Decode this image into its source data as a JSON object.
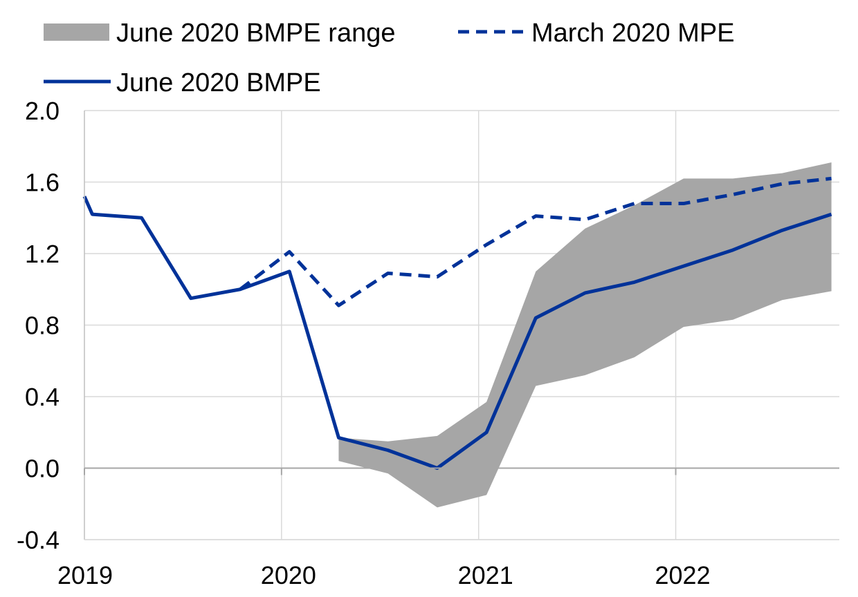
{
  "chart_data": {
    "type": "line",
    "title": "",
    "xlabel": "",
    "ylabel": "",
    "x_axis": {
      "tick_labels": [
        "2019",
        "2020",
        "2021",
        "2022"
      ],
      "range": [
        2019.0,
        2022.83
      ]
    },
    "y_axis": {
      "tick_labels": [
        "2.0",
        "1.6",
        "1.2",
        "0.8",
        "0.4",
        "0.0",
        "-0.4"
      ],
      "ylim": [
        -0.4,
        2.0
      ]
    },
    "grid": true,
    "legend": {
      "placement": "top",
      "entries": [
        {
          "label": "June 2020 BMPE range",
          "style": "band",
          "color": "#a6a6a6"
        },
        {
          "label": "March 2020 MPE",
          "style": "dashed",
          "color": "#003299"
        },
        {
          "label": "June 2020 BMPE",
          "style": "solid",
          "color": "#003299"
        }
      ]
    },
    "series": [
      {
        "name": "June 2020 BMPE",
        "style": "solid",
        "color": "#003299",
        "x": [
          2019.0,
          2019.04,
          2019.29,
          2019.54,
          2019.79,
          2020.04,
          2020.29,
          2020.54,
          2020.79,
          2021.04,
          2021.29,
          2021.54,
          2021.79,
          2022.04,
          2022.29,
          2022.54,
          2022.79
        ],
        "y": [
          1.52,
          1.42,
          1.4,
          0.95,
          1.0,
          1.1,
          0.17,
          0.1,
          0.0,
          0.2,
          0.84,
          0.98,
          1.04,
          1.13,
          1.22,
          1.33,
          1.42
        ]
      },
      {
        "name": "March 2020 MPE",
        "style": "dashed",
        "color": "#003299",
        "x": [
          2019.79,
          2020.04,
          2020.29,
          2020.54,
          2020.79,
          2021.04,
          2021.29,
          2021.54,
          2021.79,
          2022.04,
          2022.29,
          2022.54,
          2022.79
        ],
        "y": [
          1.0,
          1.21,
          0.91,
          1.09,
          1.07,
          1.25,
          1.41,
          1.39,
          1.48,
          1.48,
          1.53,
          1.59,
          1.62
        ]
      },
      {
        "name": "June 2020 BMPE range",
        "type": "area",
        "color": "#a6a6a6",
        "x": [
          2020.29,
          2020.54,
          2020.79,
          2021.04,
          2021.29,
          2021.54,
          2021.79,
          2022.04,
          2022.29,
          2022.54,
          2022.79
        ],
        "lower": [
          0.04,
          -0.03,
          -0.22,
          -0.15,
          0.46,
          0.52,
          0.62,
          0.79,
          0.83,
          0.94,
          0.99
        ],
        "upper": [
          0.17,
          0.15,
          0.18,
          0.37,
          1.1,
          1.34,
          1.47,
          1.62,
          1.62,
          1.65,
          1.71
        ]
      }
    ]
  }
}
